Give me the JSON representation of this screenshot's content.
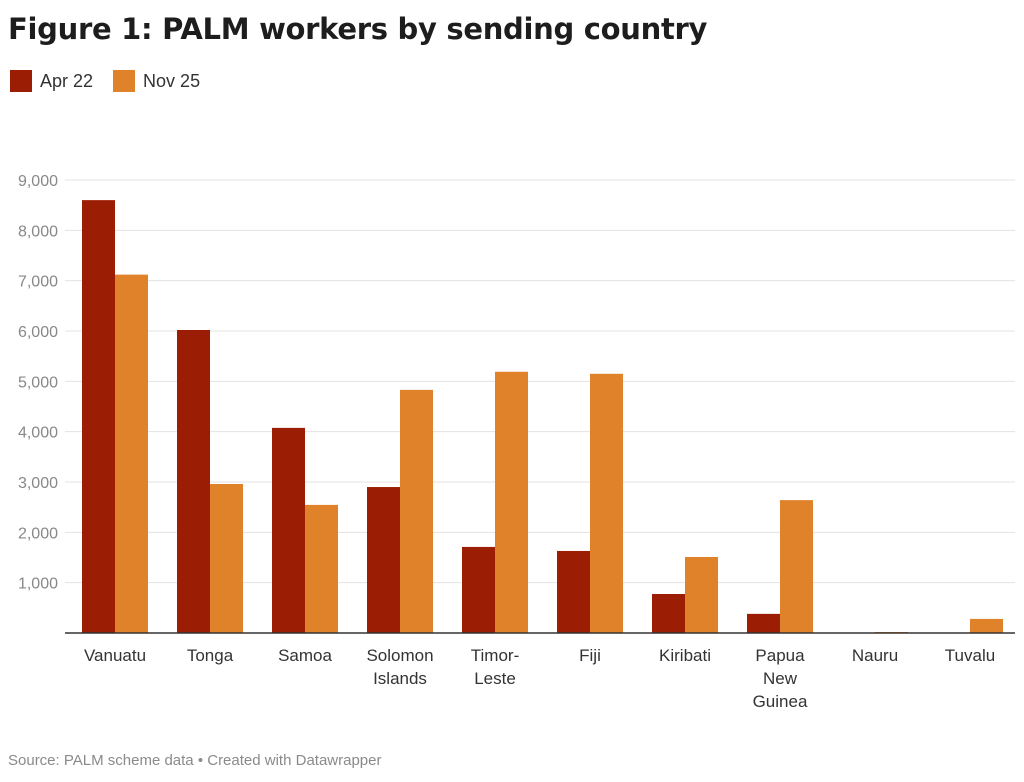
{
  "chart_data": {
    "type": "bar",
    "title": "Figure 1: PALM workers by sending country",
    "categories": [
      "Vanuatu",
      "Tonga",
      "Samoa",
      "Solomon Islands",
      "Timor-Leste",
      "Fiji",
      "Kiribati",
      "Papua New Guinea",
      "Nauru",
      "Tuvalu"
    ],
    "category_lines": [
      [
        "Vanuatu"
      ],
      [
        "Tonga"
      ],
      [
        "Samoa"
      ],
      [
        "Solomon",
        "Islands"
      ],
      [
        "Timor-",
        "Leste"
      ],
      [
        "Fiji"
      ],
      [
        "Kiribati"
      ],
      [
        "Papua",
        "New",
        "Guinea"
      ],
      [
        "Nauru"
      ],
      [
        "Tuvalu"
      ]
    ],
    "series": [
      {
        "name": "Apr 22",
        "color": "#9b1d03",
        "values": [
          8600,
          6020,
          4075,
          2900,
          1710,
          1630,
          775,
          380,
          0,
          0
        ]
      },
      {
        "name": "Nov 25",
        "color": "#e0822a",
        "values": [
          7120,
          2960,
          2545,
          4830,
          5190,
          5150,
          1510,
          2640,
          20,
          280
        ]
      }
    ],
    "yticks": [
      "1,000",
      "2,000",
      "3,000",
      "4,000",
      "5,000",
      "6,000",
      "7,000",
      "8,000",
      "9,000"
    ],
    "ylim": [
      0,
      9000
    ],
    "grid": true,
    "legend": "top-left",
    "source": "Source: PALM scheme data • Created with Datawrapper"
  }
}
